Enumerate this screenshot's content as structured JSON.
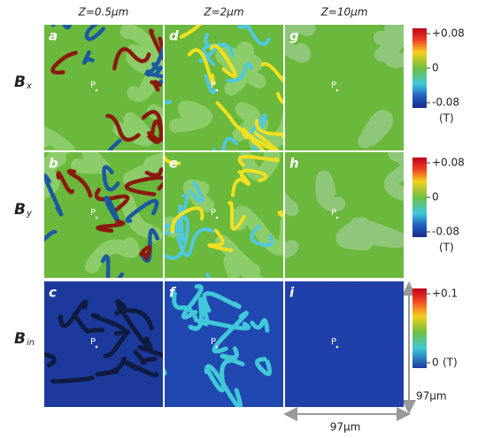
{
  "columns": [
    "Z=0.5μm",
    "Z=2μm",
    "Z=10μm"
  ],
  "rows": [
    {
      "symbol": "B",
      "subscript": "x"
    },
    {
      "symbol": "B",
      "subscript": "y"
    },
    {
      "symbol": "B",
      "subscript": "in"
    }
  ],
  "panels": [
    [
      "a",
      "d",
      "g"
    ],
    [
      "b",
      "e",
      "h"
    ],
    [
      "c",
      "f",
      "i"
    ]
  ],
  "point_label": "P",
  "colorbars": [
    {
      "ticks": [
        "+0.08",
        "0",
        "-0.08"
      ],
      "unit": "(T)"
    },
    {
      "ticks": [
        "+0.08",
        "0",
        "-0.08"
      ],
      "unit": "(T)"
    },
    {
      "ticks": [
        "+0.1",
        "0"
      ],
      "unit": "(T)"
    }
  ],
  "scale": {
    "vertical": "97μm",
    "horizontal": "97μm"
  }
}
